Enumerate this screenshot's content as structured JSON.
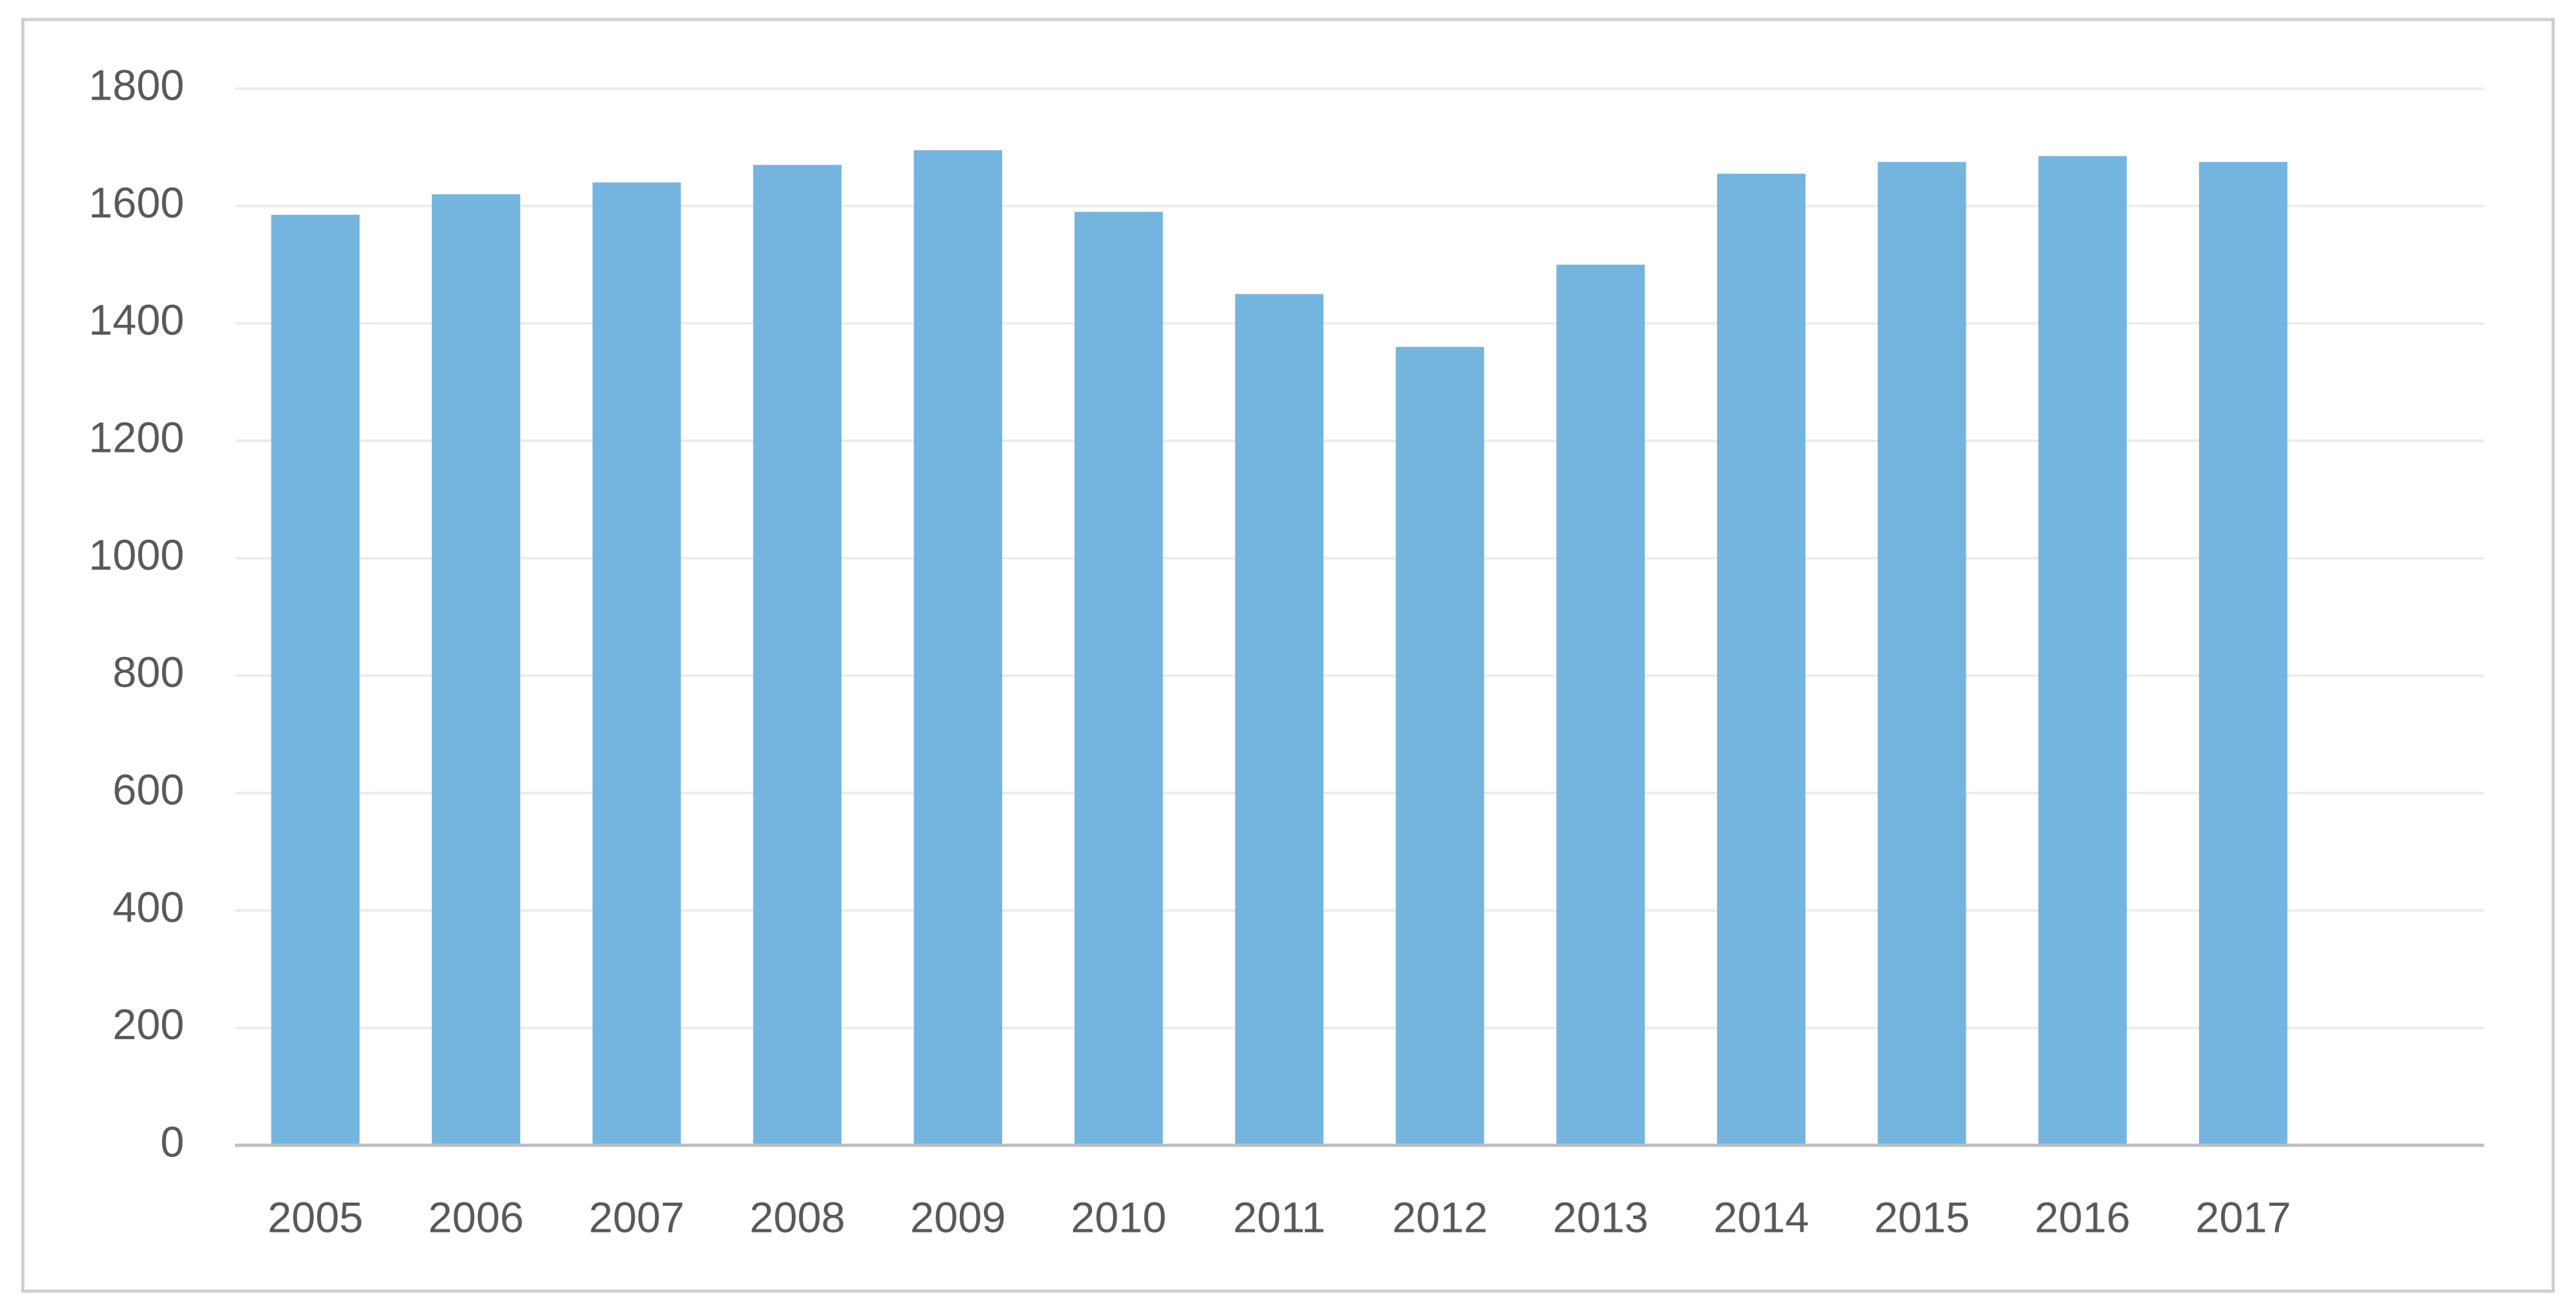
{
  "chart_data": {
    "type": "bar",
    "categories": [
      "2005",
      "2006",
      "2007",
      "2008",
      "2009",
      "2010",
      "2011",
      "2012",
      "2013",
      "2014",
      "2015",
      "2016",
      "2017",
      null
    ],
    "values": [
      1585,
      1620,
      1640,
      1670,
      1695,
      1590,
      1450,
      1360,
      1500,
      1655,
      1675,
      1685,
      1675,
      null
    ],
    "color": "#74b5e0",
    "ylim": [
      0,
      1800
    ],
    "yticks": [
      0,
      200,
      400,
      600,
      800,
      1000,
      1200,
      1400,
      1600,
      1800
    ],
    "grid": true
  }
}
